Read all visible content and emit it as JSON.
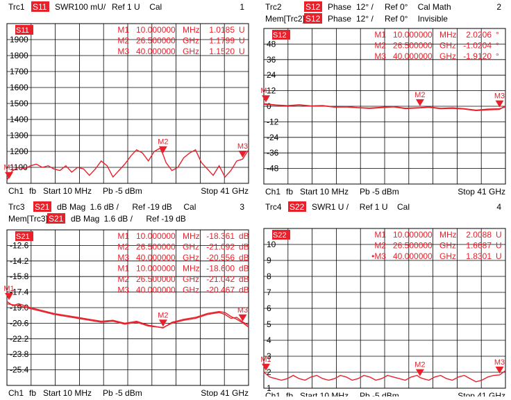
{
  "colors": {
    "trace": "#e8202a",
    "badge_bg": "#e8202a",
    "badge_text": "#ffffff",
    "grid": "#000000",
    "text": "#000000",
    "background": "#ffffff"
  },
  "panels": [
    {
      "id": "trc1",
      "header": [
        {
          "trc": "Trc1",
          "badge": "S11",
          "info": [
            "SWR",
            "100 mU/",
            "Ref 1 U",
            "Cal"
          ],
          "num": "1"
        }
      ],
      "param": "S11",
      "markers": [
        {
          "name": "M1",
          "freq": "10.000000",
          "unit": "MHz",
          "value": "1.0185",
          "vunit": "U"
        },
        {
          "name": "M2",
          "freq": "26.500000",
          "unit": "GHz",
          "value": "1.1799",
          "vunit": "U"
        },
        {
          "name": "M3",
          "freq": "40.000000",
          "unit": "GHz",
          "value": "1.1520",
          "vunit": "U"
        }
      ],
      "footer": {
        "ch": "Ch1",
        "fb": "fb",
        "start": "Start  10 MHz",
        "pb": "Pb  -5 dBm",
        "stop": "Stop  41 GHz"
      }
    },
    {
      "id": "trc2",
      "header": [
        {
          "trc": "Trc2",
          "badge": "S12",
          "info": [
            "Phase",
            "12° /",
            "Ref 0°",
            "Cal Math"
          ],
          "num": "2"
        },
        {
          "trc": "Mem[Trc2]",
          "badge": "S12",
          "info": [
            "Phase",
            "12° /",
            "Ref 0°",
            "Invisible"
          ],
          "num": ""
        }
      ],
      "param": "S12",
      "markers": [
        {
          "name": "M1",
          "freq": "10.000000",
          "unit": "MHz",
          "value": "2.0206",
          "vunit": "°"
        },
        {
          "name": "M2",
          "freq": "26.500000",
          "unit": "GHz",
          "value": "-1.0204",
          "vunit": "°"
        },
        {
          "name": "M3",
          "freq": "40.000000",
          "unit": "GHz",
          "value": "-1.9120",
          "vunit": "°"
        }
      ],
      "footer": {
        "ch": "Ch1",
        "fb": "fb",
        "start": "Start  10 MHz",
        "pb": "Pb  -5 dBm",
        "stop": "Stop  41 GHz"
      }
    },
    {
      "id": "trc3",
      "header": [
        {
          "trc": "Trc3",
          "badge": "S21",
          "info": [
            "dB Mag",
            "1.6 dB /",
            "Ref -19 dB",
            "Cal"
          ],
          "num": "3"
        },
        {
          "trc": "Mem[Trc3]",
          "badge": "S21",
          "info": [
            "dB Mag",
            "1.6 dB /",
            "Ref -19 dB",
            ""
          ],
          "num": ""
        }
      ],
      "param": "S21",
      "markers": [
        {
          "name": "M1",
          "freq": "10.000000",
          "unit": "MHz",
          "value": "-18.361",
          "vunit": "dB"
        },
        {
          "name": "M2",
          "freq": "26.500000",
          "unit": "GHz",
          "value": "-21.092",
          "vunit": "dB"
        },
        {
          "name": "M3",
          "freq": "40.000000",
          "unit": "GHz",
          "value": "-20.556",
          "vunit": "dB"
        },
        {
          "name": "M1",
          "freq": "10.000000",
          "unit": "MHz",
          "value": "-18.600",
          "vunit": "dB"
        },
        {
          "name": "M2",
          "freq": "26.500000",
          "unit": "GHz",
          "value": "-21.042",
          "vunit": "dB"
        },
        {
          "name": "M3",
          "freq": "40.000000",
          "unit": "GHz",
          "value": "-20.467",
          "vunit": "dB"
        }
      ],
      "footer": {
        "ch": "Ch1",
        "fb": "fb",
        "start": "Start  10 MHz",
        "pb": "Pb  -5 dBm",
        "stop": "Stop  41 GHz"
      }
    },
    {
      "id": "trc4",
      "header": [
        {
          "trc": "Trc4",
          "badge": "S22",
          "info": [
            "SWR",
            "1 U /",
            "Ref 1 U",
            "Cal"
          ],
          "num": "4"
        }
      ],
      "param": "S22",
      "markers": [
        {
          "name": "M1",
          "freq": "10.000000",
          "unit": "MHz",
          "value": "2.0088",
          "vunit": "U"
        },
        {
          "name": "M2",
          "freq": "26.500000",
          "unit": "GHz",
          "value": "1.6687",
          "vunit": "U"
        },
        {
          "name": "•M3",
          "freq": "40.000000",
          "unit": "GHz",
          "value": "1.8301",
          "vunit": "U"
        }
      ],
      "footer": {
        "ch": "Ch1",
        "fb": "fb",
        "start": "Start  10 MHz",
        "pb": "Pb  -5 dBm",
        "stop": "Stop  41 GHz"
      }
    }
  ],
  "chart_data": [
    {
      "type": "line",
      "title": "Trc1 S11 SWR",
      "y_ticks": [
        "1900",
        "1800",
        "1700",
        "1600",
        "1500",
        "1400",
        "1300",
        "1200",
        "1100"
      ],
      "ylim": [
        1.0,
        2.0
      ],
      "xlim_ghz": [
        0.01,
        41
      ],
      "grid": true,
      "series": [
        {
          "name": "Trc1",
          "x": [
            0.01,
            0.5,
            1,
            2,
            3,
            4,
            5,
            6,
            7,
            8,
            9,
            10,
            11,
            12,
            13,
            14,
            15,
            16,
            17,
            18,
            19,
            20,
            21,
            22,
            23,
            24,
            25,
            26,
            26.5,
            27,
            28,
            29,
            30,
            31,
            32,
            33,
            34,
            35,
            36,
            37,
            38,
            39,
            40,
            41
          ],
          "y": [
            1.0185,
            1.06,
            1.08,
            1.1,
            1.09,
            1.11,
            1.12,
            1.1,
            1.11,
            1.09,
            1.08,
            1.11,
            1.07,
            1.1,
            1.09,
            1.05,
            1.09,
            1.14,
            1.11,
            1.04,
            1.08,
            1.12,
            1.17,
            1.21,
            1.19,
            1.14,
            1.2,
            1.22,
            1.1799,
            1.13,
            1.08,
            1.1,
            1.16,
            1.19,
            1.21,
            1.13,
            1.09,
            1.05,
            1.11,
            1.04,
            1.08,
            1.14,
            1.152,
            1.21
          ]
        }
      ],
      "markers": [
        {
          "name": "M1",
          "x": 0.01
        },
        {
          "name": "M2",
          "x": 26.5
        },
        {
          "name": "M3",
          "x": 40
        }
      ]
    },
    {
      "type": "line",
      "title": "Trc2 S12 Phase",
      "y_ticks": [
        "48",
        "36",
        "24",
        "12",
        "0",
        "-12",
        "-24",
        "-36",
        "-48"
      ],
      "ylim": [
        -60,
        60
      ],
      "xlim_ghz": [
        0.01,
        41
      ],
      "grid": true,
      "series": [
        {
          "name": "Trc2",
          "x": [
            0.01,
            2,
            4,
            6,
            8,
            10,
            12,
            14,
            16,
            18,
            20,
            22,
            24,
            26.5,
            28,
            30,
            32,
            34,
            36,
            38,
            40,
            41
          ],
          "y": [
            2.02,
            1.0,
            0.5,
            1.2,
            0.3,
            0.6,
            -0.5,
            -0.3,
            -1.0,
            -1.4,
            -0.8,
            -0.2,
            -1.5,
            -1.02,
            -0.5,
            -1.6,
            -1.2,
            -1.8,
            -3.0,
            -2.2,
            -1.91,
            -0.5
          ]
        },
        {
          "name": "Mem[Trc2]",
          "x": [
            0.01,
            2,
            4,
            6,
            8,
            10,
            12,
            14,
            16,
            18,
            20,
            22,
            24,
            26.5,
            28,
            30,
            32,
            34,
            36,
            38,
            40,
            41
          ],
          "y": [
            1.5,
            0.8,
            0.3,
            0.9,
            0.1,
            0.3,
            -0.7,
            -0.6,
            -1.2,
            -1.7,
            -1.1,
            -0.5,
            -1.8,
            -1.3,
            -0.8,
            -1.9,
            -1.6,
            -2.2,
            -3.4,
            -2.8,
            -2.4,
            0.4
          ]
        }
      ],
      "markers": [
        {
          "name": "M1",
          "x": 0.01
        },
        {
          "name": "M2",
          "x": 26.5
        },
        {
          "name": "M3",
          "x": 40
        }
      ]
    },
    {
      "type": "line",
      "title": "Trc3 S21 dB Mag",
      "y_ticks": [
        "-12.6",
        "-14.2",
        "-15.8",
        "-17.4",
        "-19.0",
        "-20.6",
        "-22.2",
        "-23.8",
        "-25.4"
      ],
      "ylim": [
        -27,
        -11
      ],
      "xlim_ghz": [
        0.01,
        41
      ],
      "grid": true,
      "series": [
        {
          "name": "Trc3",
          "x": [
            0.01,
            1,
            2,
            4,
            6,
            8,
            10,
            12,
            14,
            16,
            18,
            20,
            22,
            24,
            26.5,
            28,
            30,
            32,
            34,
            36,
            37,
            38,
            39,
            40,
            41
          ],
          "y": [
            -18.361,
            -18.8,
            -18.6,
            -19.0,
            -19.3,
            -19.6,
            -19.8,
            -20.0,
            -20.2,
            -20.4,
            -20.3,
            -20.6,
            -20.4,
            -20.8,
            -21.092,
            -20.5,
            -20.2,
            -20.0,
            -19.6,
            -19.4,
            -19.5,
            -19.9,
            -20.2,
            -20.556,
            -21.0
          ]
        },
        {
          "name": "Mem[Trc3]",
          "x": [
            0.01,
            1,
            2,
            4,
            6,
            8,
            10,
            12,
            14,
            16,
            18,
            20,
            22,
            24,
            26.5,
            28,
            30,
            32,
            34,
            36,
            37,
            38,
            39,
            40,
            41
          ],
          "y": [
            -18.6,
            -18.7,
            -18.8,
            -19.1,
            -19.4,
            -19.7,
            -19.9,
            -20.1,
            -20.3,
            -20.5,
            -20.4,
            -20.7,
            -20.5,
            -20.9,
            -21.042,
            -20.6,
            -20.3,
            -20.1,
            -19.7,
            -19.5,
            -19.7,
            -20.1,
            -20.0,
            -20.467,
            -20.8
          ]
        }
      ],
      "markers": [
        {
          "name": "M1",
          "x": 0.01
        },
        {
          "name": "M2",
          "x": 26.5
        },
        {
          "name": "M3",
          "x": 40
        }
      ]
    },
    {
      "type": "line",
      "title": "Trc4 S22 SWR",
      "y_ticks": [
        "10",
        "9",
        "8",
        "7",
        "6",
        "5",
        "4",
        "3",
        "2",
        "1"
      ],
      "ylim": [
        1,
        11
      ],
      "xlim_ghz": [
        0.01,
        41
      ],
      "grid": true,
      "series": [
        {
          "name": "Trc4",
          "x": [
            0.01,
            1,
            2,
            3,
            4,
            5,
            6,
            7,
            8,
            9,
            10,
            11,
            12,
            13,
            14,
            15,
            16,
            17,
            18,
            19,
            20,
            21,
            22,
            23,
            24,
            25,
            26,
            26.5,
            27,
            28,
            29,
            30,
            31,
            32,
            33,
            34,
            35,
            36,
            37,
            38,
            39,
            40,
            41
          ],
          "y": [
            2.0088,
            1.7,
            1.6,
            1.5,
            1.6,
            1.8,
            1.6,
            1.5,
            1.7,
            1.8,
            1.6,
            1.5,
            1.6,
            1.8,
            1.7,
            1.5,
            1.6,
            1.8,
            1.7,
            1.5,
            1.6,
            1.8,
            1.7,
            1.6,
            1.5,
            1.7,
            1.8,
            1.6687,
            1.6,
            1.5,
            1.7,
            1.8,
            1.6,
            1.5,
            1.7,
            1.8,
            1.6,
            1.4,
            1.5,
            1.7,
            1.8,
            1.8301,
            2.1
          ]
        }
      ],
      "markers": [
        {
          "name": "M1",
          "x": 0.01
        },
        {
          "name": "M2",
          "x": 26.5
        },
        {
          "name": "M3",
          "x": 40
        }
      ]
    }
  ]
}
